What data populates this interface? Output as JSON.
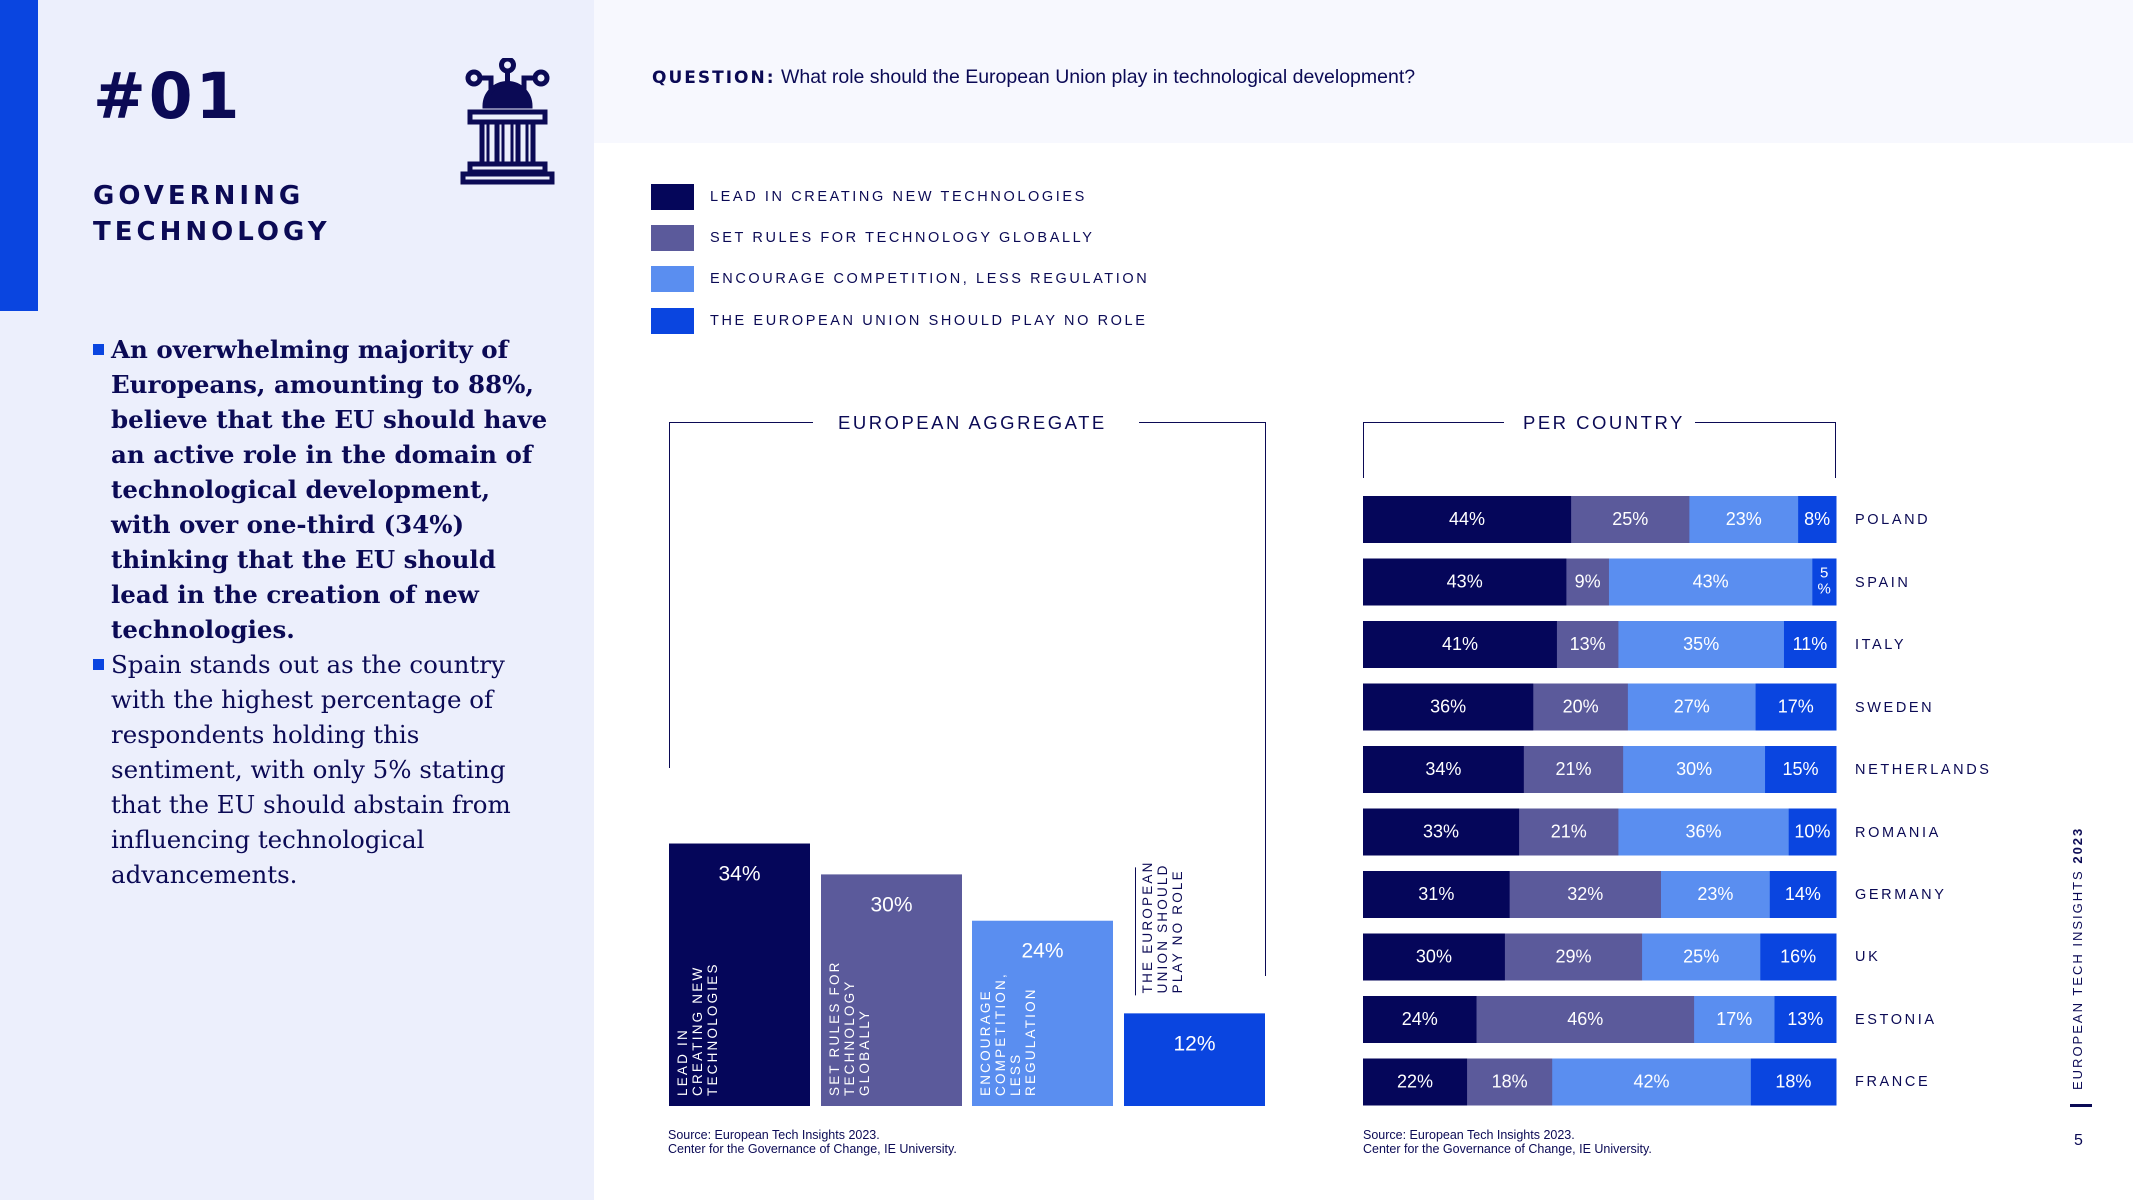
{
  "section": {
    "number": "#01",
    "title": "GOVERNING TECHNOLOGY"
  },
  "icons": {
    "section_icon": "government-building-circuit-icon"
  },
  "bullets": [
    "An overwhelming majority of Europeans, amounting to 88%, believe that the EU should have an active role in the domain of technological development, with over one-third (34%) thinking that the EU should lead in the creation of new technologies.",
    "Spain stands out as the country with the highest percentage of respondents holding this sentiment, with only 5% stating that the EU should abstain from influencing technological advancements."
  ],
  "question": {
    "prefix": "QUESTION:",
    "text": "What role should the European Union play in technological development?"
  },
  "legend": [
    {
      "label": "LEAD IN CREATING NEW TECHNOLOGIES",
      "color": "#05065a"
    },
    {
      "label": "SET RULES FOR TECHNOLOGY GLOBALLY",
      "color": "#5b5a9b"
    },
    {
      "label": "ENCOURAGE COMPETITION, LESS REGULATION",
      "color": "#5a8ef0"
    },
    {
      "label": "THE EUROPEAN UNION SHOULD PLAY NO ROLE",
      "color": "#0a45e0"
    }
  ],
  "sources": {
    "left": [
      "Source: European Tech Insights 2023.",
      "Center for the Governance of Change, IE University."
    ],
    "right": [
      "Source: European Tech Insights 2023.",
      "Center for the Governance of Change, IE University."
    ]
  },
  "side_caption": {
    "text": "EUROPEAN TECH INSIGHTS ",
    "year": "2023"
  },
  "page_number": "5",
  "chart_data": [
    {
      "type": "bar",
      "title": "EUROPEAN AGGREGATE",
      "categories": [
        "LEAD IN CREATING NEW TECHNOLOGIES",
        "SET RULES FOR TECHNOLOGY GLOBALLY",
        "ENCOURAGE COMPETITION, LESS REGULATION",
        "THE EUROPEAN UNION SHOULD PLAY NO ROLE"
      ],
      "bar_text": [
        [
          "LEAD IN",
          "CREATING NEW",
          "TECHNOLOGIES"
        ],
        [
          "SET RULES FOR",
          "TECHNOLOGY",
          "GLOBALLY"
        ],
        [
          "ENCOURAGE",
          "COMPETITION,",
          "LESS",
          "REGULATION"
        ],
        [
          "THE EUROPEAN",
          "UNION SHOULD",
          "PLAY NO ROLE"
        ]
      ],
      "values": [
        34,
        30,
        24,
        12
      ],
      "labels": [
        "34%",
        "30%",
        "24%",
        "12%"
      ],
      "colors": [
        "#05065a",
        "#5b5a9b",
        "#5a8ef0",
        "#0a45e0"
      ],
      "ylim": [
        0,
        100
      ],
      "unit": "%"
    },
    {
      "type": "stacked_bar_horizontal",
      "title": "PER COUNTRY",
      "categories": [
        "POLAND",
        "SPAIN",
        "ITALY",
        "SWEDEN",
        "NETHERLANDS",
        "ROMANIA",
        "GERMANY",
        "UK",
        "ESTONIA",
        "FRANCE"
      ],
      "series": [
        {
          "name": "LEAD IN CREATING NEW TECHNOLOGIES",
          "color": "#05065a",
          "values": [
            44,
            43,
            41,
            36,
            34,
            33,
            31,
            30,
            24,
            22
          ],
          "labels": [
            "44%",
            "43%",
            "41%",
            "36%",
            "34%",
            "33%",
            "31%",
            "30%",
            "24%",
            "22%"
          ]
        },
        {
          "name": "SET RULES FOR TECHNOLOGY GLOBALLY",
          "color": "#5b5a9b",
          "values": [
            25,
            9,
            13,
            20,
            21,
            21,
            32,
            29,
            46,
            18
          ],
          "labels": [
            "25%",
            "9%",
            "13%",
            "20%",
            "21%",
            "21%",
            "32%",
            "29%",
            "46%",
            "18%"
          ]
        },
        {
          "name": "ENCOURAGE COMPETITION, LESS REGULATION",
          "color": "#5a8ef0",
          "values": [
            23,
            43,
            35,
            27,
            30,
            36,
            23,
            25,
            17,
            42
          ],
          "labels": [
            "23%",
            "43%",
            "35%",
            "27%",
            "30%",
            "36%",
            "23%",
            "25%",
            "17%",
            "42%"
          ]
        },
        {
          "name": "THE EUROPEAN UNION SHOULD PLAY NO ROLE",
          "color": "#0a45e0",
          "values": [
            8,
            5,
            11,
            17,
            15,
            10,
            14,
            16,
            13,
            18
          ],
          "labels": [
            "8%",
            "5 %",
            "11%",
            "17%",
            "15%",
            "10%",
            "14%",
            "16%",
            "13%",
            "18%"
          ]
        }
      ],
      "unit": "%"
    }
  ]
}
